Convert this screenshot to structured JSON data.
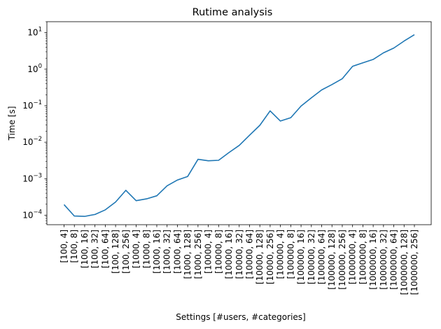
{
  "chart_data": {
    "type": "line",
    "title": "Rutime analysis",
    "xlabel": "Settings [#users, #categories]",
    "ylabel": "Time [s]",
    "yscale": "log",
    "ylim": [
      5.5e-05,
      20
    ],
    "grid": false,
    "line_color": "#1f77b4",
    "categories": [
      "[100, 4]",
      "[100, 8]",
      "[100, 16]",
      "[100, 32]",
      "[100, 64]",
      "[100, 128]",
      "[100, 256]",
      "[1000, 4]",
      "[1000, 8]",
      "[1000, 16]",
      "[1000, 32]",
      "[1000, 64]",
      "[1000, 128]",
      "[1000, 256]",
      "[10000, 4]",
      "[10000, 8]",
      "[10000, 16]",
      "[10000, 32]",
      "[10000, 64]",
      "[10000, 128]",
      "[10000, 256]",
      "[100000, 4]",
      "[100000, 8]",
      "[100000, 16]",
      "[100000, 32]",
      "[100000, 64]",
      "[100000, 128]",
      "[100000, 256]",
      "[1000000, 4]",
      "[1000000, 8]",
      "[1000000, 16]",
      "[1000000, 32]",
      "[1000000, 64]",
      "[1000000, 128]",
      "[1000000, 256]"
    ],
    "values": [
      0.000195,
      9.5e-05,
      9.3e-05,
      0.000105,
      0.00014,
      0.00023,
      0.00048,
      0.00025,
      0.00028,
      0.00034,
      0.00064,
      0.00092,
      0.00115,
      0.0034,
      0.0031,
      0.0032,
      0.0052,
      0.0082,
      0.0155,
      0.029,
      0.072,
      0.038,
      0.047,
      0.098,
      0.165,
      0.27,
      0.38,
      0.55,
      1.2,
      1.5,
      1.85,
      2.8,
      3.8,
      5.9,
      8.8
    ],
    "yticks": [
      {
        "value": 0.0001,
        "base": "10",
        "exp": "−4"
      },
      {
        "value": 0.001,
        "base": "10",
        "exp": "−3"
      },
      {
        "value": 0.01,
        "base": "10",
        "exp": "−2"
      },
      {
        "value": 0.1,
        "base": "10",
        "exp": "−1"
      },
      {
        "value": 1,
        "base": "10",
        "exp": "0"
      },
      {
        "value": 10,
        "base": "10",
        "exp": "1"
      }
    ]
  }
}
